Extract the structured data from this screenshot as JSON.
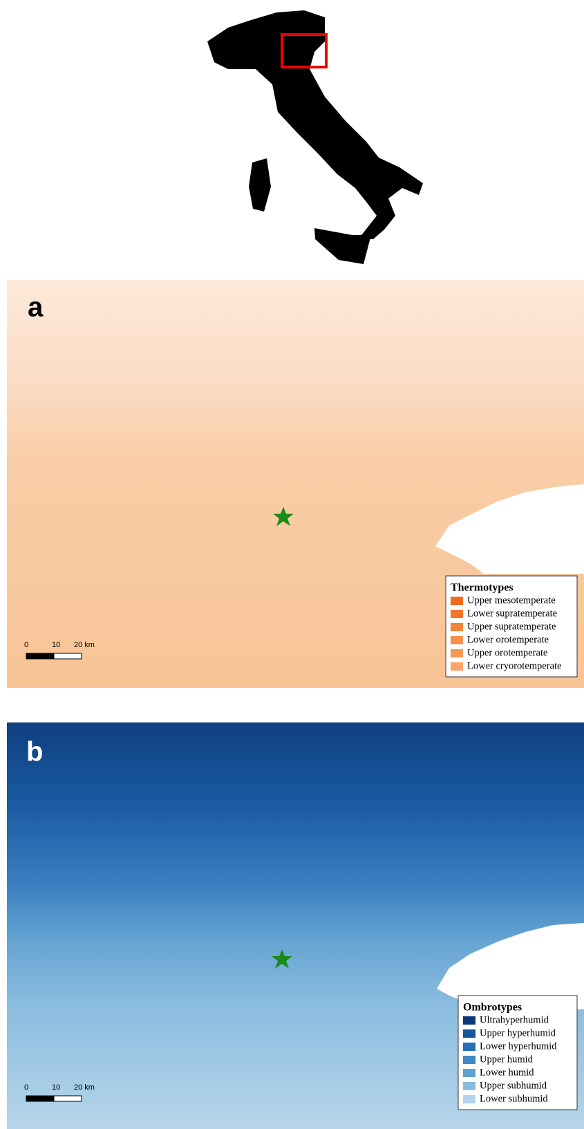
{
  "panels": [
    {
      "label": "a",
      "legend": {
        "title": "Thermotypes",
        "items": [
          {
            "label": "Upper mesotemperate",
            "color": "#ef6a1c"
          },
          {
            "label": "Lower supratemperate",
            "color": "#f2772c"
          },
          {
            "label": "Upper supratemperate",
            "color": "#f4843b"
          },
          {
            "label": "Lower orotemperate",
            "color": "#f5904b"
          },
          {
            "label": "Upper orotemperate",
            "color": "#f69a58"
          },
          {
            "label": "Lower cryorotemperate",
            "color": "#f7a568"
          }
        ]
      },
      "scale": {
        "labels": [
          "0",
          "10",
          "20 km"
        ]
      }
    },
    {
      "label": "b",
      "legend": {
        "title": "Ombrotypes",
        "items": [
          {
            "label": "Ultrahyperhumid",
            "color": "#0c3a77"
          },
          {
            "label": "Upper hyperhumid",
            "color": "#16569e"
          },
          {
            "label": "Lower hyperhumid",
            "color": "#276fb5"
          },
          {
            "label": "Upper humid",
            "color": "#4289c4"
          },
          {
            "label": "Lower humid",
            "color": "#60a1d2"
          },
          {
            "label": "Upper subhumid",
            "color": "#89bde0"
          },
          {
            "label": "Lower subhumid",
            "color": "#b2d3ea"
          }
        ]
      },
      "scale": {
        "labels": [
          "0",
          "10",
          "20 km"
        ]
      }
    }
  ]
}
